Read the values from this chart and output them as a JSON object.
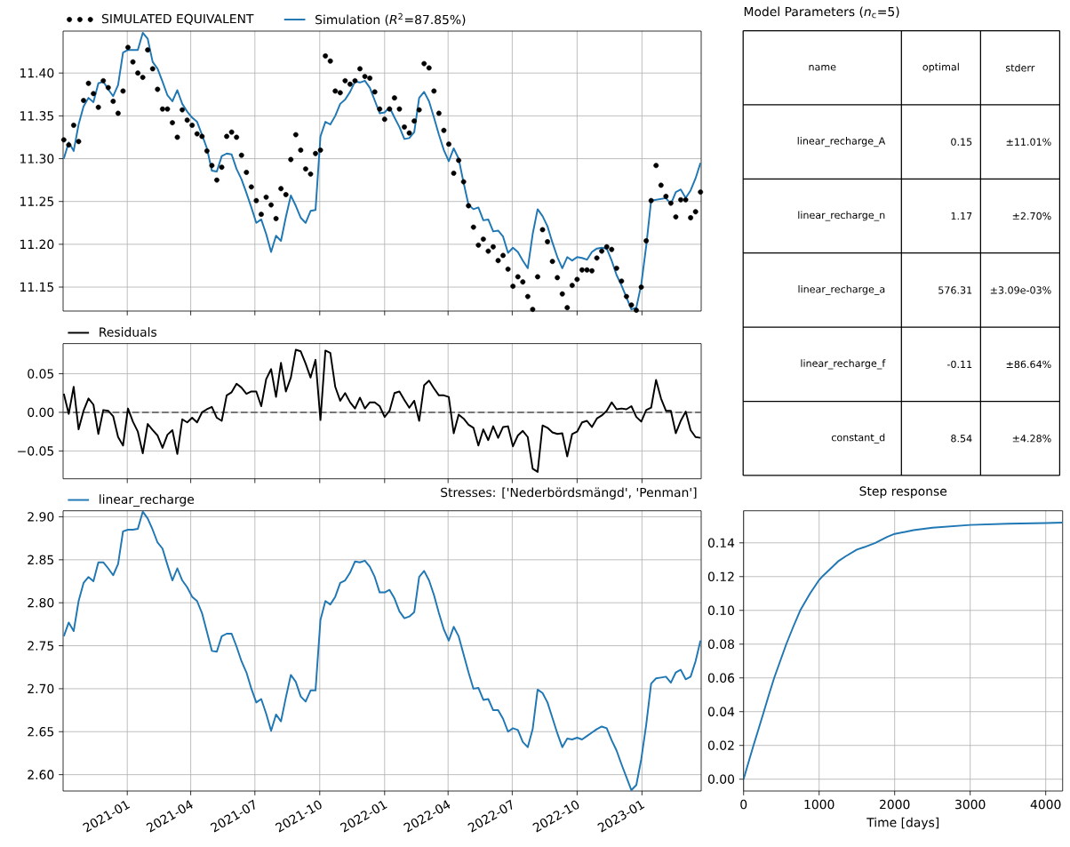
{
  "chart_data": [
    {
      "type": "scatter",
      "x": [
        "2020-10-03",
        "2020-10-10",
        "2020-10-17",
        "2020-10-24",
        "2020-10-31",
        "2020-11-07",
        "2020-11-14",
        "2020-11-21",
        "2020-11-28",
        "2020-12-05",
        "2020-12-12",
        "2020-12-19",
        "2020-12-26",
        "2021-01-02",
        "2021-01-09",
        "2021-01-16",
        "2021-01-23",
        "2021-01-30",
        "2021-02-06",
        "2021-02-13",
        "2021-02-20",
        "2021-02-27",
        "2021-03-06",
        "2021-03-13",
        "2021-03-20",
        "2021-03-27",
        "2021-04-03",
        "2021-04-10",
        "2021-04-17",
        "2021-04-24",
        "2021-05-01",
        "2021-05-08",
        "2021-05-15",
        "2021-05-22",
        "2021-05-29",
        "2021-06-05",
        "2021-06-12",
        "2021-06-19",
        "2021-06-26",
        "2021-07-03",
        "2021-07-10",
        "2021-07-17",
        "2021-07-24",
        "2021-07-31",
        "2021-08-07",
        "2021-08-14",
        "2021-08-21",
        "2021-08-28",
        "2021-09-04",
        "2021-09-11",
        "2021-09-18",
        "2021-09-25",
        "2021-10-02",
        "2021-10-09",
        "2021-10-16",
        "2021-10-23",
        "2021-10-30",
        "2021-11-06",
        "2021-11-13",
        "2021-11-20",
        "2021-11-27",
        "2021-12-04",
        "2021-12-11",
        "2021-12-18",
        "2021-12-25",
        "2022-01-01",
        "2022-01-08",
        "2022-01-15",
        "2022-01-22",
        "2022-01-29",
        "2022-02-05",
        "2022-02-12",
        "2022-02-19",
        "2022-02-26",
        "2022-03-05",
        "2022-03-12",
        "2022-03-19",
        "2022-03-26",
        "2022-04-02",
        "2022-04-09",
        "2022-04-16",
        "2022-04-23",
        "2022-04-30",
        "2022-05-07",
        "2022-05-14",
        "2022-05-21",
        "2022-05-28",
        "2022-06-04",
        "2022-06-11",
        "2022-06-18",
        "2022-06-25",
        "2022-07-02",
        "2022-07-09",
        "2022-07-16",
        "2022-07-23",
        "2022-07-30",
        "2022-08-06",
        "2022-08-13",
        "2022-08-20",
        "2022-08-27",
        "2022-09-03",
        "2022-09-10",
        "2022-09-17",
        "2022-09-24",
        "2022-10-01",
        "2022-10-08",
        "2022-10-15",
        "2022-10-22",
        "2022-10-29",
        "2022-11-05",
        "2022-11-12",
        "2022-11-19",
        "2022-11-26",
        "2022-12-03",
        "2022-12-10",
        "2022-12-17",
        "2022-12-24",
        "2022-12-31",
        "2023-01-07",
        "2023-01-14",
        "2023-01-21",
        "2023-01-28",
        "2023-02-04",
        "2023-02-11",
        "2023-02-18",
        "2023-02-25",
        "2023-03-04",
        "2023-03-11",
        "2023-03-18",
        "2023-03-25"
      ],
      "series": [
        {
          "name": "SIMULATED EQUIVALENT",
          "type": "scatter",
          "marker": "circle",
          "color": "#000000",
          "values": [
            11.322,
            11.316,
            11.339,
            11.32,
            11.368,
            11.388,
            11.376,
            11.36,
            11.391,
            11.383,
            11.367,
            11.353,
            11.379,
            11.43,
            11.413,
            11.4,
            11.395,
            11.427,
            11.405,
            11.381,
            11.358,
            11.358,
            11.342,
            11.325,
            11.357,
            11.345,
            11.339,
            11.329,
            11.326,
            11.309,
            11.292,
            11.275,
            11.29,
            11.326,
            11.331,
            11.325,
            11.304,
            11.284,
            11.267,
            11.251,
            11.235,
            11.255,
            11.246,
            11.23,
            11.265,
            11.258,
            11.299,
            11.328,
            11.31,
            11.288,
            11.282,
            11.306,
            11.31,
            11.42,
            11.414,
            11.379,
            11.377,
            11.391,
            11.387,
            11.391,
            11.405,
            11.396,
            11.394,
            11.378,
            11.358,
            11.346,
            11.358,
            11.371,
            11.358,
            11.337,
            11.33,
            11.344,
            11.357,
            11.411,
            11.406,
            11.379,
            11.353,
            11.333,
            11.317,
            11.283,
            11.298,
            11.273,
            11.245,
            11.22,
            11.199,
            11.206,
            11.192,
            11.197,
            11.181,
            11.187,
            11.171,
            11.151,
            11.162,
            11.156,
            11.139,
            11.124,
            11.162,
            11.217,
            11.203,
            11.18,
            11.161,
            11.142,
            11.126,
            11.152,
            11.159,
            11.17,
            11.17,
            11.169,
            11.184,
            11.192,
            11.197,
            11.194,
            11.172,
            11.157,
            11.139,
            11.129,
            11.123,
            11.15,
            11.204,
            11.251,
            11.292,
            11.269,
            11.256,
            11.248,
            11.232,
            11.252,
            11.252,
            11.231,
            11.238,
            11.261
          ]
        },
        {
          "name": "Simulation (*R*$^{2}$=87.85%)",
          "type": "line",
          "color": "#1f77b4",
          "values": [
            11.3,
            11.319,
            11.309,
            11.34,
            11.361,
            11.371,
            11.366,
            11.388,
            11.39,
            11.381,
            11.373,
            11.386,
            11.424,
            11.427,
            11.427,
            11.427,
            11.447,
            11.44,
            11.413,
            11.405,
            11.39,
            11.374,
            11.367,
            11.38,
            11.364,
            11.355,
            11.348,
            11.343,
            11.328,
            11.312,
            11.286,
            11.285,
            11.303,
            11.306,
            11.305,
            11.288,
            11.276,
            11.26,
            11.243,
            11.225,
            11.229,
            11.212,
            11.191,
            11.21,
            11.204,
            11.232,
            11.257,
            11.245,
            11.231,
            11.225,
            11.239,
            11.24,
            11.326,
            11.343,
            11.34,
            11.35,
            11.364,
            11.369,
            11.378,
            11.39,
            11.389,
            11.391,
            11.383,
            11.368,
            11.353,
            11.354,
            11.36,
            11.348,
            11.337,
            11.323,
            11.324,
            11.331,
            11.371,
            11.378,
            11.367,
            11.348,
            11.328,
            11.31,
            11.297,
            11.312,
            11.3,
            11.272,
            11.246,
            11.241,
            11.243,
            11.228,
            11.229,
            11.215,
            11.216,
            11.209,
            11.19,
            11.196,
            11.191,
            11.181,
            11.172,
            11.212,
            11.241,
            11.233,
            11.221,
            11.202,
            11.185,
            11.172,
            11.185,
            11.181,
            11.185,
            11.184,
            11.182,
            11.191,
            11.195,
            11.196,
            11.195,
            11.181,
            11.164,
            11.152,
            11.138,
            11.124,
            11.126,
            11.153,
            11.198,
            11.251,
            11.252,
            11.253,
            11.254,
            11.247,
            11.261,
            11.264,
            11.254,
            11.263,
            11.277,
            11.295
          ]
        }
      ],
      "xlim": [
        "2020-10-02",
        "2023-03-26"
      ],
      "xticks": [
        "2021-01",
        "2021-04",
        "2021-07",
        "2021-10",
        "2022-01",
        "2022-04",
        "2022-07",
        "2022-10",
        "2023-01"
      ],
      "ylim": [
        11.122,
        11.449
      ],
      "yticks": [
        {
          "value": 11.15,
          "label": "11.15"
        },
        {
          "value": 11.2,
          "label": "11.20"
        },
        {
          "value": 11.25,
          "label": "11.25"
        },
        {
          "value": 11.3,
          "label": "11.30"
        },
        {
          "value": 11.35,
          "label": "11.35"
        },
        {
          "value": 11.4,
          "label": "11.40"
        }
      ],
      "grid": true,
      "legend": "top left",
      "tick_labels": "y"
    },
    {
      "type": "other",
      "title": "Model Parameters (*n*$_{c}$=5)",
      "categories": [
        "name",
        "optimal",
        "stderr"
      ],
      "cell_labels": [
        [
          "linear_recharge_A",
          "0.15",
          "±11.01%"
        ],
        [
          "linear_recharge_n",
          "1.17",
          "±2.70%"
        ],
        [
          "linear_recharge_a",
          "576.31",
          "±3.09e-03%"
        ],
        [
          "linear_recharge_f",
          "-0.11",
          "±86.64%"
        ],
        [
          "constant_d",
          "8.54",
          "±4.28%"
        ]
      ]
    },
    {
      "type": "line",
      "x": [
        "2020-10-03",
        "2020-10-10",
        "2020-10-17",
        "2020-10-24",
        "2020-10-31",
        "2020-11-07",
        "2020-11-14",
        "2020-11-21",
        "2020-11-28",
        "2020-12-05",
        "2020-12-12",
        "2020-12-19",
        "2020-12-26",
        "2021-01-02",
        "2021-01-09",
        "2021-01-16",
        "2021-01-23",
        "2021-01-30",
        "2021-02-06",
        "2021-02-13",
        "2021-02-20",
        "2021-02-27",
        "2021-03-06",
        "2021-03-13",
        "2021-03-20",
        "2021-03-27",
        "2021-04-03",
        "2021-04-10",
        "2021-04-17",
        "2021-04-24",
        "2021-05-01",
        "2021-05-08",
        "2021-05-15",
        "2021-05-22",
        "2021-05-29",
        "2021-06-05",
        "2021-06-12",
        "2021-06-19",
        "2021-06-26",
        "2021-07-03",
        "2021-07-10",
        "2021-07-17",
        "2021-07-24",
        "2021-07-31",
        "2021-08-07",
        "2021-08-14",
        "2021-08-21",
        "2021-08-28",
        "2021-09-04",
        "2021-09-11",
        "2021-09-18",
        "2021-09-25",
        "2021-10-02",
        "2021-10-09",
        "2021-10-16",
        "2021-10-23",
        "2021-10-30",
        "2021-11-06",
        "2021-11-13",
        "2021-11-20",
        "2021-11-27",
        "2021-12-04",
        "2021-12-11",
        "2021-12-18",
        "2021-12-25",
        "2022-01-01",
        "2022-01-08",
        "2022-01-15",
        "2022-01-22",
        "2022-01-29",
        "2022-02-05",
        "2022-02-12",
        "2022-02-19",
        "2022-02-26",
        "2022-03-05",
        "2022-03-12",
        "2022-03-19",
        "2022-03-26",
        "2022-04-02",
        "2022-04-09",
        "2022-04-16",
        "2022-04-23",
        "2022-04-30",
        "2022-05-07",
        "2022-05-14",
        "2022-05-21",
        "2022-05-28",
        "2022-06-04",
        "2022-06-11",
        "2022-06-18",
        "2022-06-25",
        "2022-07-02",
        "2022-07-09",
        "2022-07-16",
        "2022-07-23",
        "2022-07-30",
        "2022-08-06",
        "2022-08-13",
        "2022-08-20",
        "2022-08-27",
        "2022-09-03",
        "2022-09-10",
        "2022-09-17",
        "2022-09-24",
        "2022-10-01",
        "2022-10-08",
        "2022-10-15",
        "2022-10-22",
        "2022-10-29",
        "2022-11-05",
        "2022-11-12",
        "2022-11-19",
        "2022-11-26",
        "2022-12-03",
        "2022-12-10",
        "2022-12-17",
        "2022-12-24",
        "2022-12-31",
        "2023-01-07",
        "2023-01-14",
        "2023-01-21",
        "2023-01-28",
        "2023-02-04",
        "2023-02-11",
        "2023-02-18",
        "2023-02-25",
        "2023-03-04",
        "2023-03-11",
        "2023-03-18",
        "2023-03-25"
      ],
      "series": [
        {
          "name": "Residuals",
          "color": "#000000",
          "values": [
            0.024,
            -0.002,
            0.033,
            -0.022,
            0.002,
            0.018,
            0.01,
            -0.028,
            0.003,
            0.002,
            -0.005,
            -0.032,
            -0.043,
            0.005,
            -0.012,
            -0.025,
            -0.053,
            -0.015,
            -0.023,
            -0.03,
            -0.046,
            -0.029,
            -0.023,
            -0.054,
            -0.009,
            -0.013,
            -0.007,
            -0.013,
            0.0,
            0.004,
            0.007,
            -0.007,
            -0.011,
            0.022,
            0.026,
            0.037,
            0.032,
            0.024,
            0.027,
            0.027,
            0.008,
            0.043,
            0.056,
            0.02,
            0.064,
            0.027,
            0.045,
            0.081,
            0.079,
            0.063,
            0.045,
            0.068,
            -0.01,
            0.08,
            0.077,
            0.033,
            0.015,
            0.025,
            0.013,
            0.005,
            0.019,
            0.005,
            0.013,
            0.013,
            0.008,
            -0.006,
            0.002,
            0.025,
            0.027,
            0.016,
            0.006,
            0.015,
            -0.011,
            0.035,
            0.041,
            0.031,
            0.022,
            0.022,
            0.02,
            -0.027,
            -0.003,
            -0.008,
            -0.016,
            -0.02,
            -0.043,
            -0.022,
            -0.036,
            -0.018,
            -0.033,
            -0.019,
            -0.018,
            -0.044,
            -0.03,
            -0.024,
            -0.032,
            -0.073,
            -0.077,
            -0.017,
            -0.02,
            -0.026,
            -0.028,
            -0.027,
            -0.057,
            -0.028,
            -0.025,
            -0.013,
            -0.011,
            -0.019,
            -0.008,
            -0.004,
            0.002,
            0.013,
            0.004,
            0.005,
            0.004,
            0.008,
            -0.006,
            -0.012,
            0.003,
            0.006,
            0.042,
            0.018,
            0.002,
            0.002,
            -0.027,
            -0.011,
            0.001,
            -0.023,
            -0.032,
            -0.033
          ]
        }
      ],
      "xlim": [
        "2020-10-02",
        "2023-03-26"
      ],
      "xticks": [
        "2021-01",
        "2021-04",
        "2021-07",
        "2021-10",
        "2022-01",
        "2022-04",
        "2022-07",
        "2022-10",
        "2023-01"
      ],
      "ylim": [
        -0.086,
        0.089
      ],
      "yticks": [
        {
          "value": -0.05,
          "label": "−0.05"
        },
        {
          "value": 0,
          "label": "0.00"
        },
        {
          "value": 0.05,
          "label": "0.05"
        }
      ],
      "ref_lines": [
        {
          "axis": "y",
          "value": 0,
          "color": "#555555",
          "line_style": "dashed"
        }
      ],
      "grid": true,
      "legend": "top left",
      "tick_labels": "y"
    },
    {
      "type": "line",
      "title": "Stresses: ['Nederbördsmängd', 'Penman']",
      "x": [
        "2020-10-03",
        "2020-10-10",
        "2020-10-17",
        "2020-10-24",
        "2020-10-31",
        "2020-11-07",
        "2020-11-14",
        "2020-11-21",
        "2020-11-28",
        "2020-12-05",
        "2020-12-12",
        "2020-12-19",
        "2020-12-26",
        "2021-01-02",
        "2021-01-09",
        "2021-01-16",
        "2021-01-23",
        "2021-01-30",
        "2021-02-06",
        "2021-02-13",
        "2021-02-20",
        "2021-02-27",
        "2021-03-06",
        "2021-03-13",
        "2021-03-20",
        "2021-03-27",
        "2021-04-03",
        "2021-04-10",
        "2021-04-17",
        "2021-04-24",
        "2021-05-01",
        "2021-05-08",
        "2021-05-15",
        "2021-05-22",
        "2021-05-29",
        "2021-06-05",
        "2021-06-12",
        "2021-06-19",
        "2021-06-26",
        "2021-07-03",
        "2021-07-10",
        "2021-07-17",
        "2021-07-24",
        "2021-07-31",
        "2021-08-07",
        "2021-08-14",
        "2021-08-21",
        "2021-08-28",
        "2021-09-04",
        "2021-09-11",
        "2021-09-18",
        "2021-09-25",
        "2021-10-02",
        "2021-10-09",
        "2021-10-16",
        "2021-10-23",
        "2021-10-30",
        "2021-11-06",
        "2021-11-13",
        "2021-11-20",
        "2021-11-27",
        "2021-12-04",
        "2021-12-11",
        "2021-12-18",
        "2021-12-25",
        "2022-01-01",
        "2022-01-08",
        "2022-01-15",
        "2022-01-22",
        "2022-01-29",
        "2022-02-05",
        "2022-02-12",
        "2022-02-19",
        "2022-02-26",
        "2022-03-05",
        "2022-03-12",
        "2022-03-19",
        "2022-03-26",
        "2022-04-02",
        "2022-04-09",
        "2022-04-16",
        "2022-04-23",
        "2022-04-30",
        "2022-05-07",
        "2022-05-14",
        "2022-05-21",
        "2022-05-28",
        "2022-06-04",
        "2022-06-11",
        "2022-06-18",
        "2022-06-25",
        "2022-07-02",
        "2022-07-09",
        "2022-07-16",
        "2022-07-23",
        "2022-07-30",
        "2022-08-06",
        "2022-08-13",
        "2022-08-20",
        "2022-08-27",
        "2022-09-03",
        "2022-09-10",
        "2022-09-17",
        "2022-09-24",
        "2022-10-01",
        "2022-10-08",
        "2022-10-15",
        "2022-10-22",
        "2022-10-29",
        "2022-11-05",
        "2022-11-12",
        "2022-11-19",
        "2022-11-26",
        "2022-12-03",
        "2022-12-10",
        "2022-12-17",
        "2022-12-24",
        "2022-12-31",
        "2023-01-07",
        "2023-01-14",
        "2023-01-21",
        "2023-01-28",
        "2023-02-04",
        "2023-02-11",
        "2023-02-18",
        "2023-02-25",
        "2023-03-04",
        "2023-03-11",
        "2023-03-18",
        "2023-03-25"
      ],
      "series": [
        {
          "name": "linear_recharge",
          "color": "#1f77b4",
          "values": [
            2.761,
            2.777,
            2.767,
            2.802,
            2.823,
            2.83,
            2.825,
            2.847,
            2.847,
            2.84,
            2.832,
            2.845,
            2.883,
            2.885,
            2.885,
            2.886,
            2.906,
            2.898,
            2.885,
            2.87,
            2.863,
            2.844,
            2.826,
            2.84,
            2.826,
            2.818,
            2.807,
            2.802,
            2.788,
            2.766,
            2.744,
            2.743,
            2.761,
            2.764,
            2.764,
            2.749,
            2.732,
            2.719,
            2.7,
            2.684,
            2.688,
            2.671,
            2.651,
            2.67,
            2.662,
            2.69,
            2.716,
            2.708,
            2.691,
            2.685,
            2.698,
            2.698,
            2.78,
            2.802,
            2.798,
            2.807,
            2.823,
            2.826,
            2.835,
            2.848,
            2.847,
            2.849,
            2.842,
            2.83,
            2.812,
            2.812,
            2.815,
            2.805,
            2.79,
            2.782,
            2.784,
            2.789,
            2.83,
            2.837,
            2.826,
            2.809,
            2.788,
            2.769,
            2.756,
            2.772,
            2.761,
            2.74,
            2.719,
            2.7,
            2.701,
            2.687,
            2.688,
            2.675,
            2.675,
            2.665,
            2.65,
            2.654,
            2.652,
            2.638,
            2.632,
            2.653,
            2.699,
            2.695,
            2.684,
            2.666,
            2.648,
            2.632,
            2.642,
            2.641,
            2.643,
            2.641,
            2.645,
            2.649,
            2.653,
            2.656,
            2.654,
            2.64,
            2.628,
            2.612,
            2.597,
            2.582,
            2.588,
            2.618,
            2.658,
            2.706,
            2.712,
            2.713,
            2.714,
            2.707,
            2.719,
            2.722,
            2.711,
            2.714,
            2.732,
            2.756
          ]
        }
      ],
      "xlim": [
        "2020-10-02",
        "2023-03-26"
      ],
      "xticks": [
        "2021-01",
        "2021-04",
        "2021-07",
        "2021-10",
        "2022-01",
        "2022-04",
        "2022-07",
        "2022-10",
        "2023-01"
      ],
      "ylim": [
        2.581,
        2.907
      ],
      "yticks": [
        {
          "value": 2.6,
          "label": "2.60"
        },
        {
          "value": 2.65,
          "label": "2.65"
        },
        {
          "value": 2.7,
          "label": "2.70"
        },
        {
          "value": 2.75,
          "label": "2.75"
        },
        {
          "value": 2.8,
          "label": "2.80"
        },
        {
          "value": 2.85,
          "label": "2.85"
        },
        {
          "value": 2.9,
          "label": "2.90"
        }
      ],
      "grid": true,
      "legend": "top left"
    },
    {
      "type": "line",
      "title": "Step response",
      "xlabel": "Time [days]",
      "series": [
        {
          "color": "#1f77b4",
          "x": [
            0,
            65,
            131,
            200,
            268,
            335,
            405,
            485,
            565,
            655,
            750,
            880,
            1000,
            1040,
            1100,
            1250,
            1350,
            1500,
            1600,
            1744,
            1900,
            2000,
            2250,
            2500,
            3000,
            3500,
            4000,
            4224
          ],
          "values": [
            0,
            0.01,
            0.02,
            0.03,
            0.04,
            0.05,
            0.06,
            0.07,
            0.08,
            0.09,
            0.1,
            0.11,
            0.118,
            0.12,
            0.1225,
            0.129,
            0.132,
            0.136,
            0.1375,
            0.14,
            0.1435,
            0.1453,
            0.1475,
            0.149,
            0.1506,
            0.1513,
            0.1517,
            0.152
          ]
        }
      ],
      "xlim": [
        0,
        4224
      ],
      "xticks": [
        0,
        1000,
        2000,
        3000,
        4000
      ],
      "ylim": [
        -0.007,
        0.159
      ],
      "yticks": [
        {
          "value": 0,
          "label": "0.00"
        },
        {
          "value": 0.02,
          "label": "0.02"
        },
        {
          "value": 0.04,
          "label": "0.04"
        },
        {
          "value": 0.06,
          "label": "0.06"
        },
        {
          "value": 0.08,
          "label": "0.08"
        },
        {
          "value": 0.1,
          "label": "0.10"
        },
        {
          "value": 0.12,
          "label": "0.12"
        },
        {
          "value": 0.14,
          "label": "0.14"
        }
      ],
      "grid": true
    }
  ]
}
